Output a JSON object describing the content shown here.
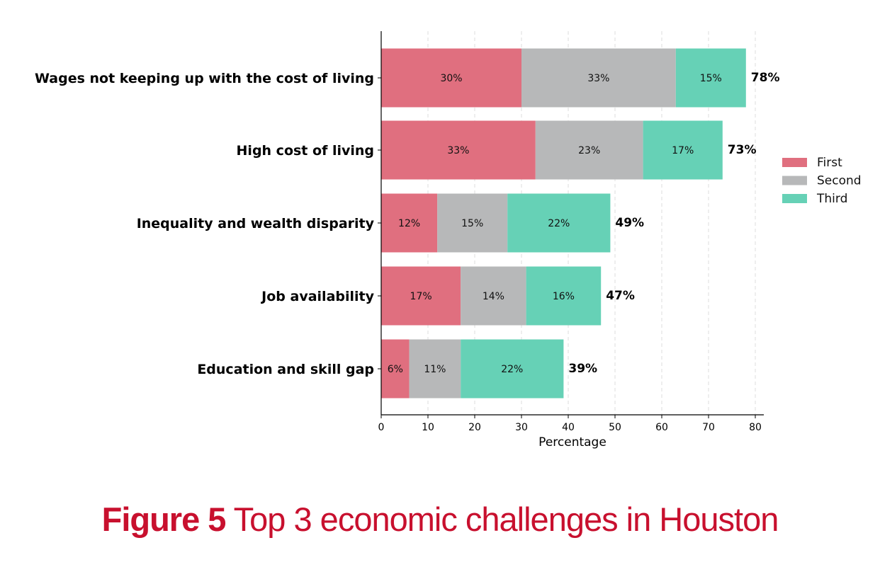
{
  "chart_data": {
    "type": "bar",
    "orientation": "horizontal",
    "stacked": true,
    "title": "",
    "xlabel": "Percentage",
    "ylabel": "",
    "xlim": [
      0,
      82
    ],
    "xticks": [
      0,
      10,
      20,
      30,
      40,
      50,
      60,
      70,
      80
    ],
    "grid": "vertical dashed",
    "legend_position": "right",
    "categories": [
      "Wages not keeping up with the cost of living",
      "High cost of living",
      "Inequality and wealth disparity",
      "Job availability",
      "Education and skill gap"
    ],
    "series": [
      {
        "name": "First",
        "color": "#e06f7f",
        "values": [
          30,
          33,
          12,
          17,
          6
        ]
      },
      {
        "name": "Second",
        "color": "#b7b8b9",
        "values": [
          33,
          23,
          15,
          14,
          11
        ]
      },
      {
        "name": "Third",
        "color": "#66d1b6",
        "values": [
          15,
          17,
          22,
          16,
          22
        ]
      }
    ],
    "totals": [
      78,
      73,
      49,
      47,
      39
    ]
  },
  "caption": {
    "figure_label": "Figure 5",
    "text": " Top 3 economic challenges in Houston"
  }
}
